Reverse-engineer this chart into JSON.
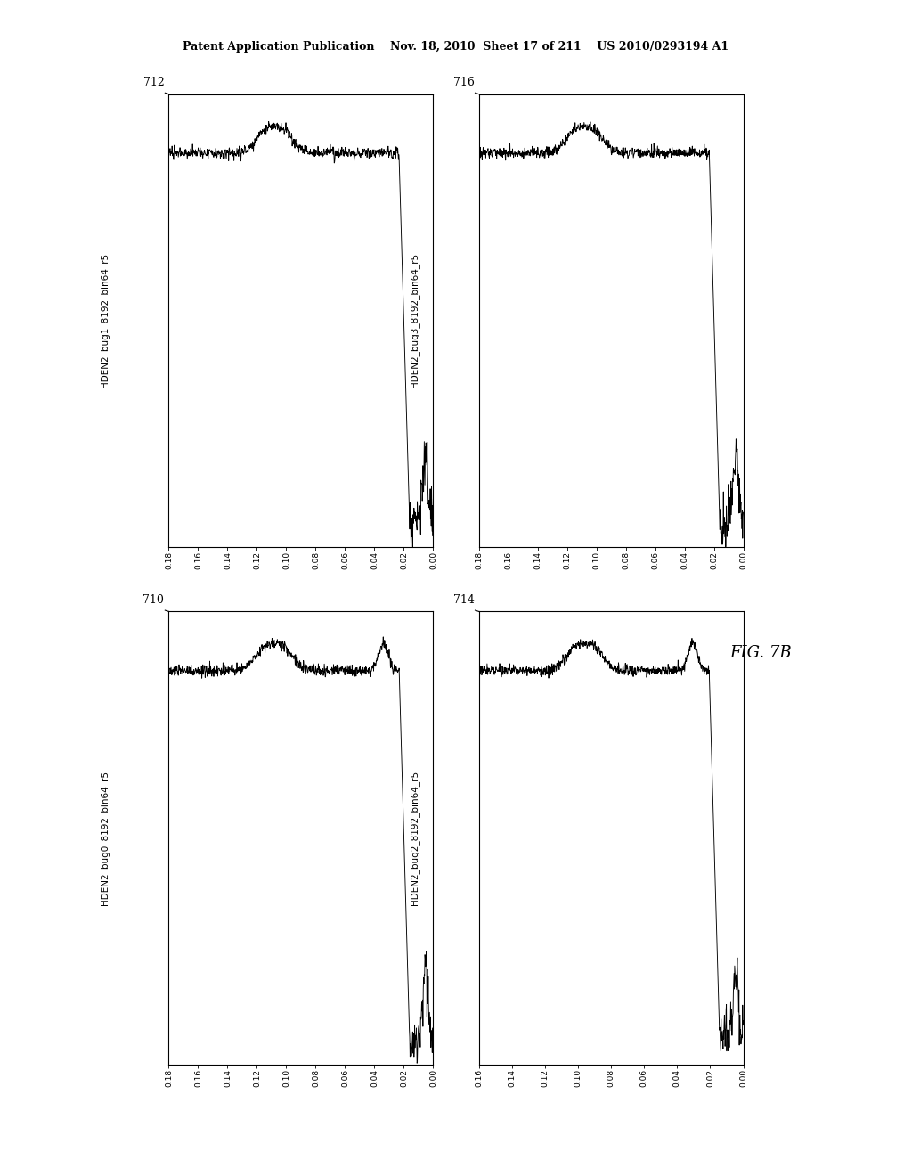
{
  "header_text": "Patent Application Publication    Nov. 18, 2010  Sheet 17 of 211    US 2010/0293194 A1",
  "fig_label": "FIG. 7B",
  "panels": [
    {
      "id": "712",
      "label": "HDEN2_bug1_8192_bin64_r5",
      "row": 0,
      "col": 0,
      "has_sharp": false,
      "xticks": [
        "0.18",
        "0.16",
        "0.14",
        "0.12",
        "0.10",
        "0.08",
        "0.06",
        "0.04",
        "0.02",
        "0.00"
      ]
    },
    {
      "id": "716",
      "label": "HDEN2_bug3_8192_bin64_r5",
      "row": 0,
      "col": 1,
      "has_sharp": false,
      "xticks": [
        "0.18",
        "0.16",
        "0.14",
        "0.12",
        "0.10",
        "0.08",
        "0.06",
        "0.04",
        "0.02",
        "0.00"
      ]
    },
    {
      "id": "710",
      "label": "HDEN2_bug0_8192_bin64_r5",
      "row": 1,
      "col": 0,
      "has_sharp": true,
      "xticks": [
        "0.18",
        "0.16",
        "0.14",
        "0.12",
        "0.10",
        "0.08",
        "0.06",
        "0.04",
        "0.02",
        "0.00"
      ]
    },
    {
      "id": "714",
      "label": "HDEN2_bug2_8192_bin64_r5",
      "row": 1,
      "col": 1,
      "has_sharp": true,
      "xticks": [
        "0.16",
        "0.14",
        "0.12",
        "0.10",
        "0.08",
        "0.06",
        "0.04",
        "0.02",
        "0.00"
      ]
    }
  ],
  "bg_color": "#ffffff",
  "line_color": "#000000",
  "text_color": "#000000",
  "header_fontsize": 9,
  "label_fontsize": 7.5,
  "tick_fontsize": 6.5,
  "id_fontsize": 9,
  "figlabel_fontsize": 13
}
